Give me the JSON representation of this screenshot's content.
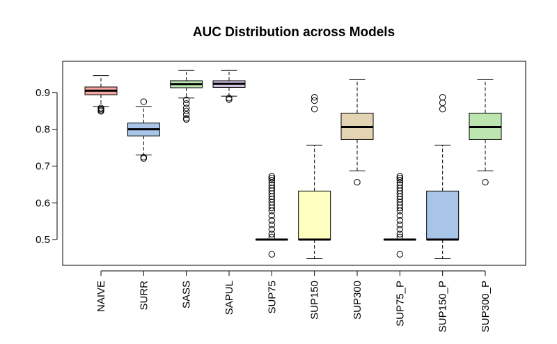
{
  "chart_data": {
    "type": "boxplot",
    "title": "AUC Distribution across Models",
    "xlabel": "",
    "ylabel": "",
    "ylim": [
      0.43,
      0.985
    ],
    "yticks": [
      "0.5",
      "0.6",
      "0.7",
      "0.8",
      "0.9"
    ],
    "grid": false,
    "legend": "none",
    "categories": [
      "NAIVE",
      "SURR",
      "SASS",
      "SAPUL",
      "SUP75",
      "SUP150",
      "SUP300",
      "SUP75_P",
      "SUP150_P",
      "SUP300_P"
    ],
    "boxes": [
      {
        "name": "NAIVE",
        "color": "#F4A6A0",
        "whisker_low": 0.862,
        "q1": 0.894,
        "median": 0.905,
        "q3": 0.915,
        "whisker_high": 0.946,
        "outliers": [
          0.858,
          0.855,
          0.852,
          0.849
        ]
      },
      {
        "name": "SURR",
        "color": "#A8C5E8",
        "whisker_low": 0.73,
        "q1": 0.782,
        "median": 0.8,
        "q3": 0.817,
        "whisker_high": 0.862,
        "outliers": [
          0.875,
          0.724,
          0.721
        ]
      },
      {
        "name": "SASS",
        "color": "#BDE5B0",
        "whisker_low": 0.885,
        "q1": 0.913,
        "median": 0.923,
        "q3": 0.932,
        "whisker_high": 0.96,
        "outliers": [
          0.88,
          0.87,
          0.858,
          0.85,
          0.84,
          0.83,
          0.827
        ]
      },
      {
        "name": "SAPUL",
        "color": "#D2C2E4",
        "whisker_low": 0.89,
        "q1": 0.914,
        "median": 0.924,
        "q3": 0.932,
        "whisker_high": 0.96,
        "outliers": [
          0.885,
          0.881
        ]
      },
      {
        "name": "SUP75",
        "color": "#F9C3B9",
        "whisker_low": 0.5,
        "q1": 0.5,
        "median": 0.5,
        "q3": 0.5,
        "whisker_high": 0.5,
        "outliers": [
          0.672,
          0.667,
          0.662,
          0.655,
          0.648,
          0.64,
          0.633,
          0.625,
          0.617,
          0.61,
          0.602,
          0.594,
          0.586,
          0.578,
          0.565,
          0.552,
          0.54,
          0.528,
          0.515,
          0.507,
          0.46
        ]
      },
      {
        "name": "SUP150",
        "color": "#FFFFC0",
        "whisker_low": 0.448,
        "q1": 0.5,
        "median": 0.5,
        "q3": 0.632,
        "whisker_high": 0.757,
        "outliers": [
          0.887,
          0.878,
          0.855
        ]
      },
      {
        "name": "SUP300",
        "color": "#E3D4B3",
        "whisker_low": 0.687,
        "q1": 0.772,
        "median": 0.806,
        "q3": 0.844,
        "whisker_high": 0.935,
        "outliers": [
          0.656
        ]
      },
      {
        "name": "SUP75_P",
        "color": "#F9C3B9",
        "whisker_low": 0.5,
        "q1": 0.5,
        "median": 0.5,
        "q3": 0.5,
        "whisker_high": 0.5,
        "outliers": [
          0.672,
          0.667,
          0.662,
          0.655,
          0.648,
          0.64,
          0.633,
          0.625,
          0.617,
          0.61,
          0.602,
          0.594,
          0.586,
          0.578,
          0.565,
          0.552,
          0.54,
          0.528,
          0.515,
          0.507,
          0.46
        ]
      },
      {
        "name": "SUP150_P",
        "color": "#A8C5E8",
        "whisker_low": 0.448,
        "q1": 0.5,
        "median": 0.5,
        "q3": 0.632,
        "whisker_high": 0.757,
        "outliers": [
          0.887,
          0.872,
          0.855
        ]
      },
      {
        "name": "SUP300_P",
        "color": "#BDE5B0",
        "whisker_low": 0.687,
        "q1": 0.772,
        "median": 0.806,
        "q3": 0.844,
        "whisker_high": 0.935,
        "outliers": [
          0.656
        ]
      }
    ]
  }
}
